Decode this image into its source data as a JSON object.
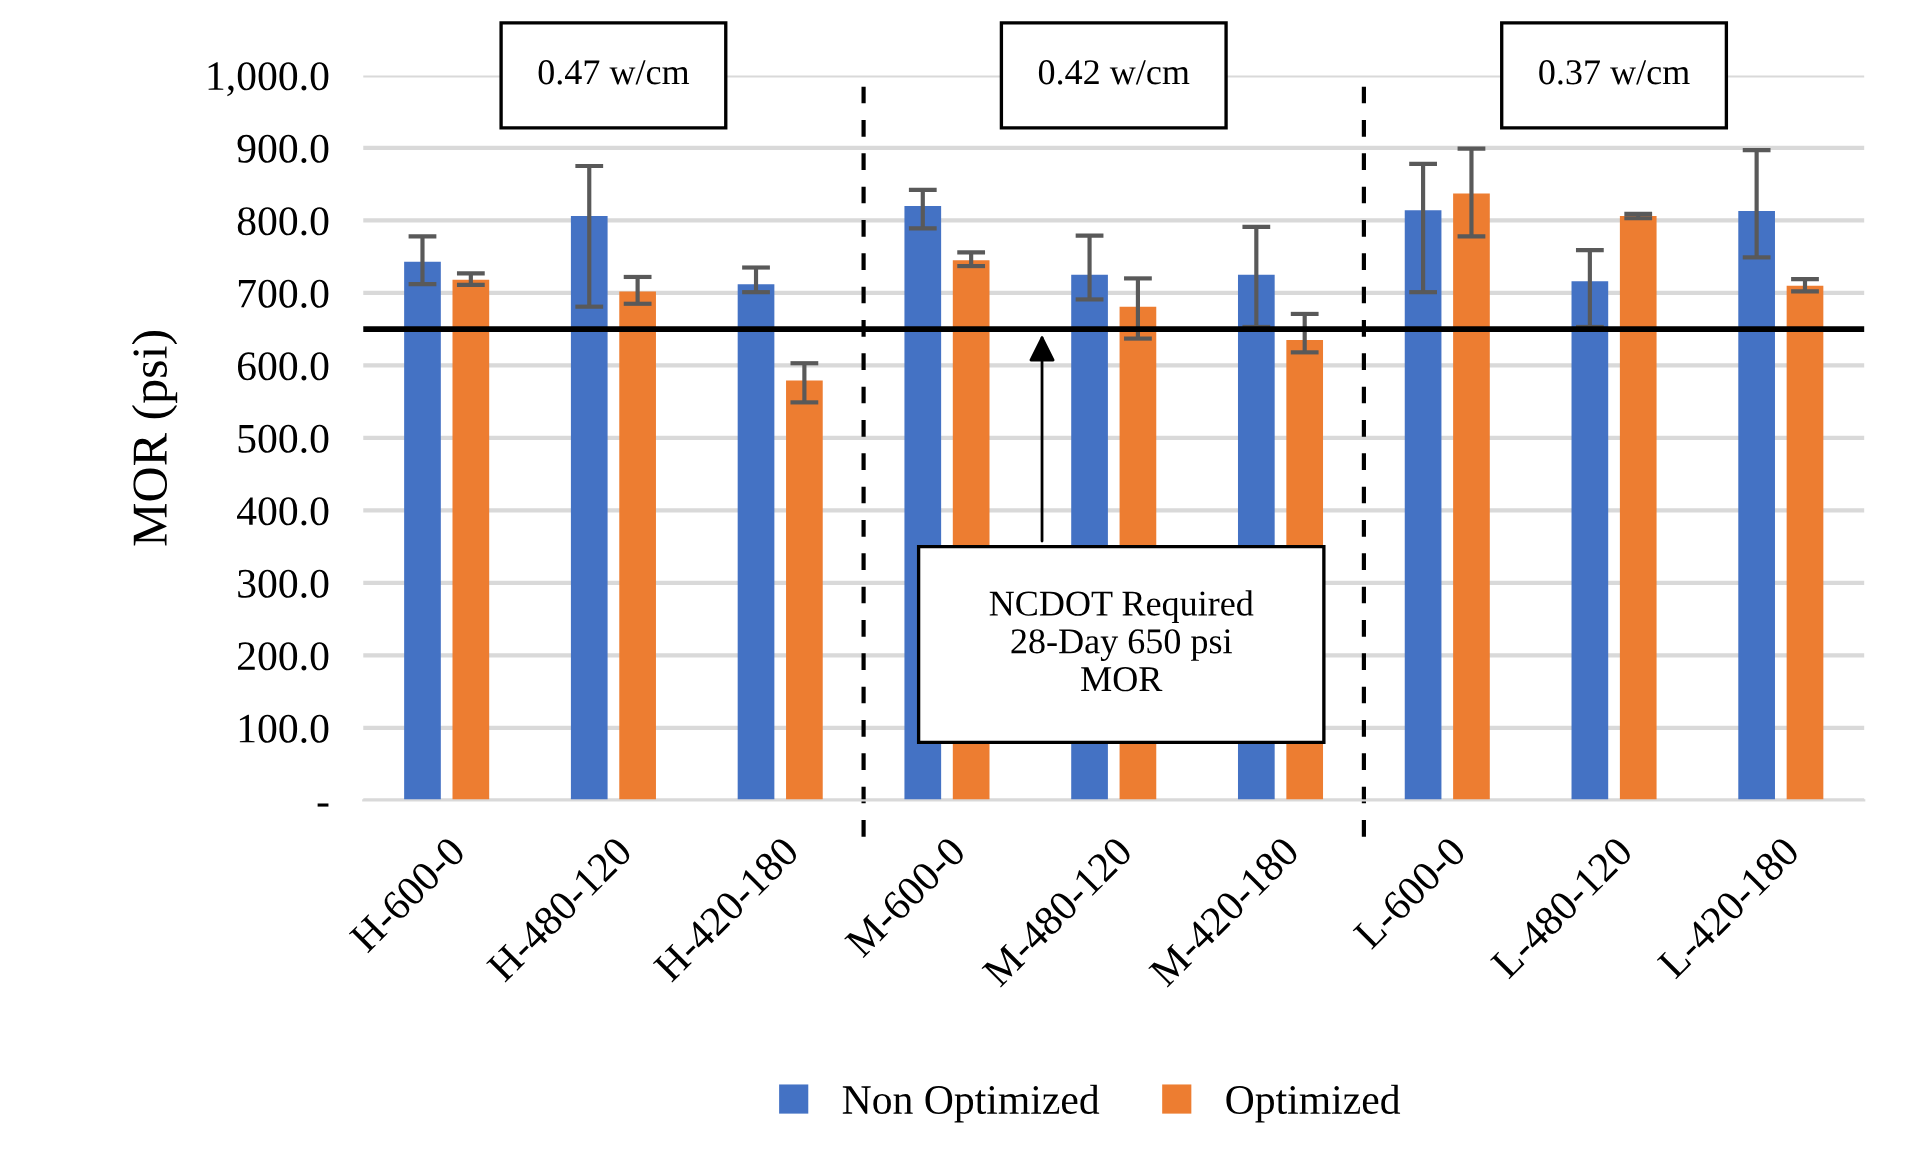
{
  "chart_data": {
    "type": "bar",
    "ylabel": "MOR (psi)",
    "categories": [
      "H-600-0",
      "H-480-120",
      "H-420-180",
      "M-600-0",
      "M-480-120",
      "M-420-180",
      "L-600-0",
      "L-480-120",
      "L-420-180"
    ],
    "series": [
      {
        "name": "Non Optimized",
        "color": "#4472c4",
        "values": [
          743,
          806,
          712,
          820,
          725,
          725,
          814,
          716,
          813
        ],
        "errors": [
          [
            712,
            778
          ],
          [
            681,
            875
          ],
          [
            701,
            735
          ],
          [
            789,
            842
          ],
          [
            691,
            779
          ],
          [
            653,
            791
          ],
          [
            701,
            878
          ],
          [
            653,
            759
          ],
          [
            749,
            897
          ]
        ]
      },
      {
        "name": "Optimized",
        "color": "#ed7d31",
        "values": [
          718,
          702,
          579,
          745,
          681,
          635,
          837,
          806,
          710
        ],
        "errors": [
          [
            711,
            727
          ],
          [
            685,
            722
          ],
          [
            549,
            603
          ],
          [
            737,
            756
          ],
          [
            637,
            720
          ],
          [
            618,
            671
          ],
          [
            778,
            899
          ],
          [
            803,
            809
          ],
          [
            702,
            719
          ]
        ]
      }
    ],
    "ylim": [
      0,
      1000
    ],
    "yticks": [
      {
        "value": 0,
        "label": "-"
      },
      {
        "value": 100,
        "label": "100.0"
      },
      {
        "value": 200,
        "label": "200.0"
      },
      {
        "value": 300,
        "label": "300.0"
      },
      {
        "value": 400,
        "label": "400.0"
      },
      {
        "value": 500,
        "label": "500.0"
      },
      {
        "value": 600,
        "label": "600.0"
      },
      {
        "value": 700,
        "label": "700.0"
      },
      {
        "value": 800,
        "label": "800.0"
      },
      {
        "value": 900,
        "label": "900.0"
      },
      {
        "value": 1000,
        "label": "1,000.0"
      }
    ],
    "ref_lines": [
      {
        "axis": "y",
        "value": 650,
        "color": "#000000",
        "line_style": "solid"
      }
    ],
    "annotations": [
      "0.47 w/cm",
      "0.42 w/cm",
      "0.37 w/cm",
      "NCDOT Required\n28-Day 650 psi\nMOR"
    ],
    "grid": "y",
    "legend": "bottom"
  }
}
